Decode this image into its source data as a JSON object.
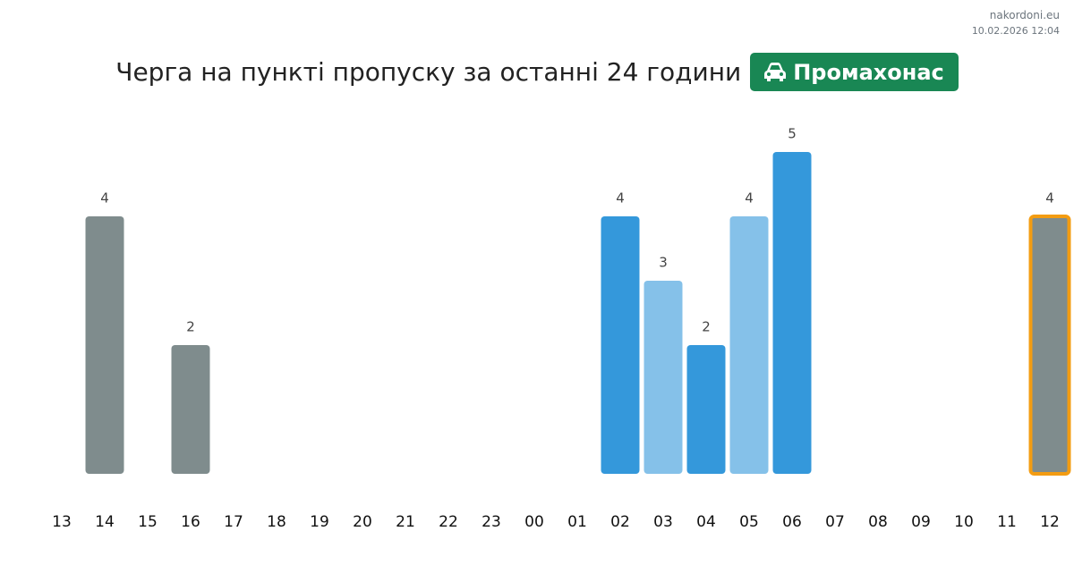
{
  "site": "nakordoni.eu",
  "timestamp": "10.02.2026 12:04",
  "chart_data": {
    "type": "bar",
    "title": "Черга на пункті пропуску за останні 24 години",
    "badge": "Промахонас",
    "categories": [
      "13",
      "14",
      "15",
      "16",
      "17",
      "18",
      "19",
      "20",
      "21",
      "22",
      "23",
      "00",
      "01",
      "02",
      "03",
      "04",
      "05",
      "06",
      "07",
      "08",
      "09",
      "10",
      "11",
      "12"
    ],
    "values": [
      null,
      4,
      null,
      2,
      null,
      null,
      null,
      null,
      null,
      null,
      null,
      null,
      null,
      4,
      3,
      2,
      4,
      5,
      null,
      null,
      null,
      null,
      null,
      4
    ],
    "colors": [
      null,
      "#7f8c8d",
      null,
      "#7f8c8d",
      null,
      null,
      null,
      null,
      null,
      null,
      null,
      null,
      null,
      "#3498db",
      "#85c1e9",
      "#3498db",
      "#85c1e9",
      "#3498db",
      null,
      null,
      null,
      null,
      null,
      "#7f8c8d"
    ],
    "border_colors": [
      null,
      null,
      null,
      null,
      null,
      null,
      null,
      null,
      null,
      null,
      null,
      null,
      null,
      null,
      null,
      null,
      null,
      null,
      null,
      null,
      null,
      null,
      null,
      "#f39c12"
    ],
    "ylim": [
      0,
      5
    ]
  }
}
